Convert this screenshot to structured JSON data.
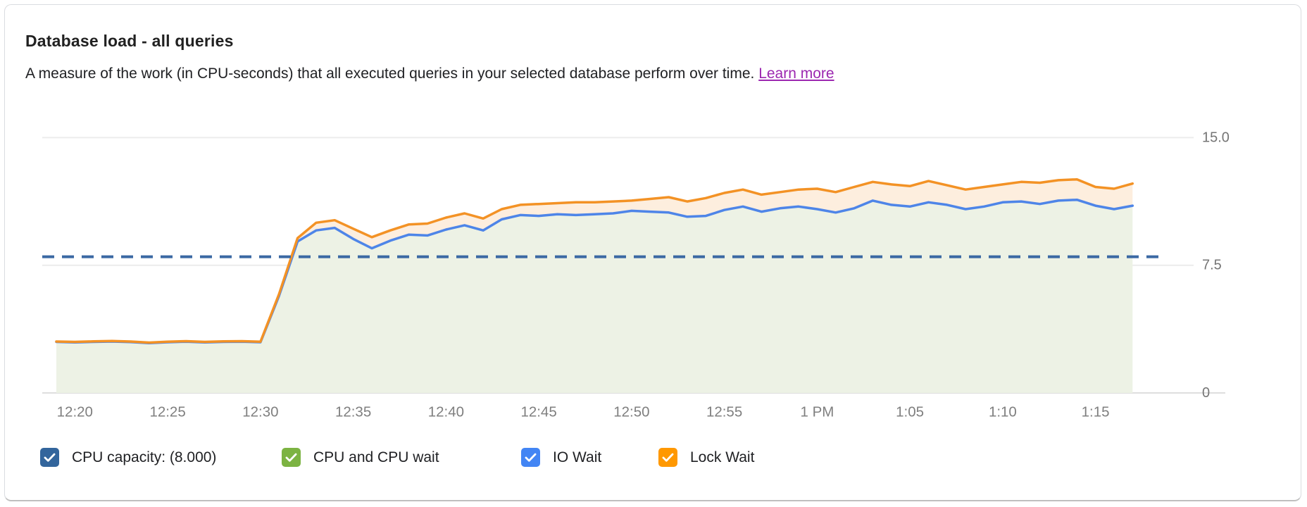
{
  "header": {
    "title": "Database load - all queries",
    "description": "A measure of the work (in CPU-seconds) that all executed queries in your selected database perform over time.",
    "learn_more": "Learn more"
  },
  "legend": {
    "items": [
      {
        "label": "CPU capacity: (8.000)",
        "color": "#33659c",
        "checked": true
      },
      {
        "label": "CPU and CPU wait",
        "color": "#7cb342",
        "checked": true
      },
      {
        "label": "IO Wait",
        "color": "#4285f4",
        "checked": true
      },
      {
        "label": "Lock Wait",
        "color": "#ff9800",
        "checked": true
      }
    ]
  },
  "chart_data": {
    "type": "area",
    "title": "Database load - all queries",
    "stacked": true,
    "x_labels_all": [
      "12:19",
      "12:20",
      "12:21",
      "12:22",
      "12:23",
      "12:24",
      "12:25",
      "12:26",
      "12:27",
      "12:28",
      "12:29",
      "12:30",
      "12:31",
      "12:32",
      "12:33",
      "12:34",
      "12:35",
      "12:36",
      "12:37",
      "12:38",
      "12:39",
      "12:40",
      "12:41",
      "12:42",
      "12:43",
      "12:44",
      "12:45",
      "12:46",
      "12:47",
      "12:48",
      "12:49",
      "12:50",
      "12:51",
      "12:52",
      "12:53",
      "12:54",
      "12:55",
      "12:56",
      "12:57",
      "12:58",
      "12:59",
      "1:00",
      "1:01",
      "1:02",
      "1:03",
      "1:04",
      "1:05",
      "1:06",
      "1:07",
      "1:08",
      "1:09",
      "1:10",
      "1:11",
      "1:12",
      "1:13",
      "1:14",
      "1:15",
      "1:16",
      "1:17"
    ],
    "x_tick_labels": [
      "12:20",
      "12:25",
      "12:30",
      "12:35",
      "12:40",
      "12:45",
      "12:50",
      "12:55",
      "1 PM",
      "1:05",
      "1:10",
      "1:15"
    ],
    "x_tick_first_index": 1,
    "x_tick_step": 5,
    "ylim": [
      0,
      15
    ],
    "yticks": [
      0,
      7.5,
      15
    ],
    "ytick_labels": [
      "0",
      "7.5",
      "15.0"
    ],
    "grid": true,
    "legend_position": "bottom",
    "reference_line": {
      "name": "CPU capacity",
      "value": 8.0,
      "style": "dashed",
      "color": "#3b69a3"
    },
    "series": [
      {
        "name": "IO Wait",
        "color": "#4e85e8",
        "area_fill_below": "#edf2e5",
        "values": [
          3.0,
          2.97,
          3.0,
          3.02,
          2.99,
          2.93,
          2.98,
          3.01,
          2.97,
          3.0,
          3.01,
          2.98,
          5.7,
          8.9,
          9.55,
          9.7,
          9.05,
          8.5,
          8.95,
          9.3,
          9.25,
          9.6,
          9.85,
          9.55,
          10.2,
          10.45,
          10.4,
          10.5,
          10.45,
          10.5,
          10.55,
          10.7,
          10.65,
          10.6,
          10.35,
          10.4,
          10.75,
          10.95,
          10.65,
          10.85,
          10.95,
          10.8,
          10.6,
          10.85,
          11.3,
          11.05,
          10.95,
          11.2,
          11.05,
          10.8,
          10.95,
          11.2,
          11.25,
          11.1,
          11.3,
          11.35,
          11.0,
          10.8,
          11.0
        ]
      },
      {
        "name": "Lock Wait",
        "color": "#f39225",
        "area_fill_to_previous": "#fdeede",
        "values": [
          3.02,
          3.0,
          3.03,
          3.05,
          3.02,
          2.96,
          3.01,
          3.04,
          3.0,
          3.03,
          3.04,
          3.01,
          5.8,
          9.1,
          10.0,
          10.15,
          9.65,
          9.15,
          9.55,
          9.9,
          9.95,
          10.3,
          10.55,
          10.25,
          10.8,
          11.05,
          11.1,
          11.15,
          11.2,
          11.2,
          11.25,
          11.3,
          11.4,
          11.5,
          11.25,
          11.45,
          11.75,
          11.95,
          11.65,
          11.8,
          11.95,
          12.0,
          11.8,
          12.1,
          12.4,
          12.25,
          12.15,
          12.45,
          12.2,
          11.95,
          12.1,
          12.25,
          12.4,
          12.35,
          12.5,
          12.55,
          12.1,
          12.0,
          12.3
        ]
      }
    ]
  }
}
